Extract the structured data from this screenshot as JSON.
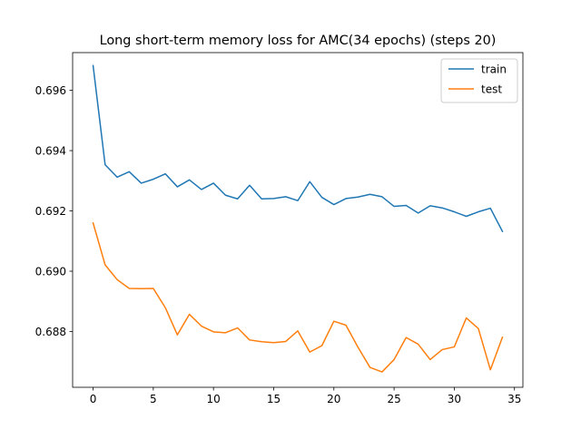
{
  "chart_data": {
    "type": "line",
    "title": "Long short-term memory loss for AMC(34 epochs) (steps 20)",
    "xlabel": "",
    "ylabel": "",
    "xlim": [
      -1.7,
      35.7
    ],
    "ylim": [
      0.68615,
      0.69725
    ],
    "xticks": [
      0,
      5,
      10,
      15,
      20,
      25,
      30,
      35
    ],
    "yticks": [
      0.69,
      0.692,
      0.694,
      0.696,
      0.688
    ],
    "ytick_labels": [
      "0.690",
      "0.692",
      "0.694",
      "0.696",
      "0.688"
    ],
    "x": [
      0,
      1,
      2,
      3,
      4,
      5,
      6,
      7,
      8,
      9,
      10,
      11,
      12,
      13,
      14,
      15,
      16,
      17,
      18,
      19,
      20,
      21,
      22,
      23,
      24,
      25,
      26,
      27,
      28,
      29,
      30,
      31,
      32,
      33,
      34
    ],
    "legend_position": "top-right",
    "grid": false,
    "series": [
      {
        "name": "train",
        "color": "#1f77b4",
        "values": [
          0.69682,
          0.69353,
          0.69312,
          0.6933,
          0.69292,
          0.69305,
          0.69323,
          0.6928,
          0.69303,
          0.69271,
          0.69292,
          0.69252,
          0.6924,
          0.69285,
          0.6924,
          0.69241,
          0.69247,
          0.69234,
          0.69297,
          0.69245,
          0.69221,
          0.69241,
          0.69246,
          0.69255,
          0.69247,
          0.69215,
          0.69218,
          0.69193,
          0.69217,
          0.6921,
          0.69197,
          0.69182,
          0.69197,
          0.69209,
          0.69132
        ]
      },
      {
        "name": "test",
        "color": "#ff7f0e",
        "values": [
          0.6916,
          0.69021,
          0.68972,
          0.68943,
          0.68942,
          0.68943,
          0.68879,
          0.68789,
          0.68857,
          0.68818,
          0.68799,
          0.68796,
          0.68812,
          0.68772,
          0.68766,
          0.68763,
          0.68767,
          0.68802,
          0.68732,
          0.68753,
          0.68834,
          0.68821,
          0.68748,
          0.68681,
          0.68666,
          0.68707,
          0.6878,
          0.68758,
          0.68707,
          0.6874,
          0.68749,
          0.68845,
          0.6881,
          0.68673,
          0.68781
        ]
      }
    ]
  }
}
